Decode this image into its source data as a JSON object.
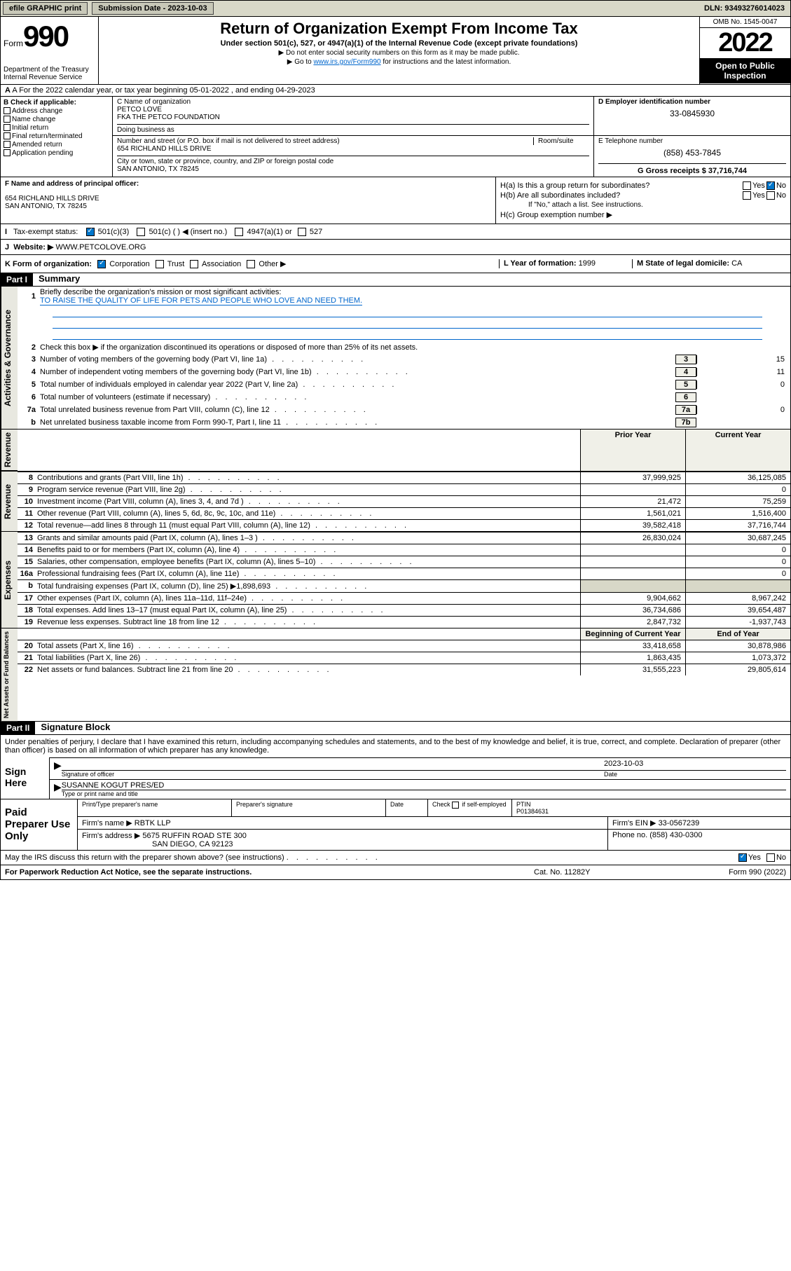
{
  "topbar": {
    "efile": "efile GRAPHIC print",
    "submission_label": "Submission Date - 2023-10-03",
    "dln": "DLN: 93493276014023"
  },
  "header": {
    "form_word": "Form",
    "form_number": "990",
    "dept": "Department of the Treasury",
    "irs": "Internal Revenue Service",
    "title": "Return of Organization Exempt From Income Tax",
    "subtitle": "Under section 501(c), 527, or 4947(a)(1) of the Internal Revenue Code (except private foundations)",
    "note1": "▶ Do not enter social security numbers on this form as it may be made public.",
    "note2_pre": "▶ Go to ",
    "note2_link": "www.irs.gov/Form990",
    "note2_post": " for instructions and the latest information.",
    "omb": "OMB No. 1545-0047",
    "year": "2022",
    "inspection": "Open to Public Inspection"
  },
  "row_a": "A For the 2022 calendar year, or tax year beginning 05-01-2022   , and ending 04-29-2023",
  "section_b": {
    "label": "B Check if applicable:",
    "items": [
      "Address change",
      "Name change",
      "Initial return",
      "Final return/terminated",
      "Amended return",
      "Application pending"
    ]
  },
  "section_c": {
    "name_label": "C Name of organization",
    "name1": "PETCO LOVE",
    "name2": "FKA THE PETCO FOUNDATION",
    "dba_label": "Doing business as",
    "addr_label": "Number and street (or P.O. box if mail is not delivered to street address)",
    "room_label": "Room/suite",
    "addr": "654 RICHLAND HILLS DRIVE",
    "city_label": "City or town, state or province, country, and ZIP or foreign postal code",
    "city": "SAN ANTONIO, TX  78245"
  },
  "section_d": {
    "label": "D Employer identification number",
    "value": "33-0845930"
  },
  "section_e": {
    "label": "E Telephone number",
    "value": "(858) 453-7845"
  },
  "section_g": {
    "label": "G Gross receipts $",
    "value": "37,716,744"
  },
  "section_f": {
    "label": "F Name and address of principal officer:",
    "addr1": "654 RICHLAND HILLS DRIVE",
    "addr2": "SAN ANTONIO, TX  78245"
  },
  "section_h": {
    "ha": "H(a)  Is this a group return for subordinates?",
    "hb": "H(b)  Are all subordinates included?",
    "hb_note": "If \"No,\" attach a list. See instructions.",
    "hc": "H(c)  Group exemption number ▶"
  },
  "row_i": {
    "label": "I",
    "text": "Tax-exempt status:",
    "opt1": "501(c)(3)",
    "opt2": "501(c) (  ) ◀ (insert no.)",
    "opt3": "4947(a)(1) or",
    "opt4": "527"
  },
  "row_j": {
    "label": "J",
    "text": "Website: ▶",
    "value": "WWW.PETCOLOVE.ORG"
  },
  "row_k": {
    "label": "K Form of organization:",
    "opts": [
      "Corporation",
      "Trust",
      "Association",
      "Other ▶"
    ],
    "l_label": "L Year of formation:",
    "l_value": "1999",
    "m_label": "M State of legal domicile:",
    "m_value": "CA"
  },
  "part1": {
    "header": "Part I",
    "title": "Summary"
  },
  "governance": {
    "side": "Activities & Governance",
    "l1_label": "Briefly describe the organization's mission or most significant activities:",
    "l1_text": "TO RAISE THE QUALITY OF LIFE FOR PETS AND PEOPLE WHO LOVE AND NEED THEM.",
    "l2": "Check this box ▶      if the organization discontinued its operations or disposed of more than 25% of its net assets.",
    "lines": [
      {
        "n": "3",
        "t": "Number of voting members of the governing body (Part VI, line 1a)",
        "box": "3",
        "v": "15"
      },
      {
        "n": "4",
        "t": "Number of independent voting members of the governing body (Part VI, line 1b)",
        "box": "4",
        "v": "11"
      },
      {
        "n": "5",
        "t": "Total number of individuals employed in calendar year 2022 (Part V, line 2a)",
        "box": "5",
        "v": "0"
      },
      {
        "n": "6",
        "t": "Total number of volunteers (estimate if necessary)",
        "box": "6",
        "v": ""
      },
      {
        "n": "7a",
        "t": "Total unrelated business revenue from Part VIII, column (C), line 12",
        "box": "7a",
        "v": "0"
      },
      {
        "n": "b",
        "t": "Net unrelated business taxable income from Form 990-T, Part I, line 11",
        "box": "7b",
        "v": ""
      }
    ]
  },
  "col_headers": {
    "prior": "Prior Year",
    "current": "Current Year"
  },
  "revenue": {
    "side": "Revenue",
    "lines": [
      {
        "n": "8",
        "t": "Contributions and grants (Part VIII, line 1h)",
        "p": "37,999,925",
        "c": "36,125,085"
      },
      {
        "n": "9",
        "t": "Program service revenue (Part VIII, line 2g)",
        "p": "",
        "c": "0"
      },
      {
        "n": "10",
        "t": "Investment income (Part VIII, column (A), lines 3, 4, and 7d )",
        "p": "21,472",
        "c": "75,259"
      },
      {
        "n": "11",
        "t": "Other revenue (Part VIII, column (A), lines 5, 6d, 8c, 9c, 10c, and 11e)",
        "p": "1,561,021",
        "c": "1,516,400"
      },
      {
        "n": "12",
        "t": "Total revenue—add lines 8 through 11 (must equal Part VIII, column (A), line 12)",
        "p": "39,582,418",
        "c": "37,716,744"
      }
    ]
  },
  "expenses": {
    "side": "Expenses",
    "lines": [
      {
        "n": "13",
        "t": "Grants and similar amounts paid (Part IX, column (A), lines 1–3 )",
        "p": "26,830,024",
        "c": "30,687,245"
      },
      {
        "n": "14",
        "t": "Benefits paid to or for members (Part IX, column (A), line 4)",
        "p": "",
        "c": "0"
      },
      {
        "n": "15",
        "t": "Salaries, other compensation, employee benefits (Part IX, column (A), lines 5–10)",
        "p": "",
        "c": "0"
      },
      {
        "n": "16a",
        "t": "Professional fundraising fees (Part IX, column (A), line 11e)",
        "p": "",
        "c": "0"
      },
      {
        "n": "b",
        "t": "Total fundraising expenses (Part IX, column (D), line 25) ▶1,898,693",
        "p": "shade",
        "c": "shade"
      },
      {
        "n": "17",
        "t": "Other expenses (Part IX, column (A), lines 11a–11d, 11f–24e)",
        "p": "9,904,662",
        "c": "8,967,242"
      },
      {
        "n": "18",
        "t": "Total expenses. Add lines 13–17 (must equal Part IX, column (A), line 25)",
        "p": "36,734,686",
        "c": "39,654,487"
      },
      {
        "n": "19",
        "t": "Revenue less expenses. Subtract line 18 from line 12",
        "p": "2,847,732",
        "c": "-1,937,743"
      }
    ]
  },
  "netassets_headers": {
    "begin": "Beginning of Current Year",
    "end": "End of Year"
  },
  "netassets": {
    "side": "Net Assets or Fund Balances",
    "lines": [
      {
        "n": "20",
        "t": "Total assets (Part X, line 16)",
        "p": "33,418,658",
        "c": "30,878,986"
      },
      {
        "n": "21",
        "t": "Total liabilities (Part X, line 26)",
        "p": "1,863,435",
        "c": "1,073,372"
      },
      {
        "n": "22",
        "t": "Net assets or fund balances. Subtract line 21 from line 20",
        "p": "31,555,223",
        "c": "29,805,614"
      }
    ]
  },
  "part2": {
    "header": "Part II",
    "title": "Signature Block",
    "intro": "Under penalties of perjury, I declare that I have examined this return, including accompanying schedules and statements, and to the best of my knowledge and belief, it is true, correct, and complete. Declaration of preparer (other than officer) is based on all information of which preparer has any knowledge."
  },
  "sign": {
    "side": "Sign Here",
    "sig_label": "Signature of officer",
    "date_label": "Date",
    "date_value": "2023-10-03",
    "name": "SUSANNE KOGUT PRES/ED",
    "name_label": "Type or print name and title"
  },
  "preparer": {
    "side": "Paid Preparer Use Only",
    "h1": "Print/Type preparer's name",
    "h2": "Preparer's signature",
    "h3": "Date",
    "h4_pre": "Check",
    "h4_post": "if self-employed",
    "h5": "PTIN",
    "ptin": "P01384631",
    "firm_label": "Firm's name     ▶",
    "firm_name": "RBTK LLP",
    "firm_ein_label": "Firm's EIN ▶",
    "firm_ein": "33-0567239",
    "addr_label": "Firm's address ▶",
    "addr1": "5675 RUFFIN ROAD STE 300",
    "addr2": "SAN DIEGO, CA  92123",
    "phone_label": "Phone no.",
    "phone": "(858) 430-0300"
  },
  "discuss": "May the IRS discuss this return with the preparer shown above? (see instructions)",
  "footer": {
    "left": "For Paperwork Reduction Act Notice, see the separate instructions.",
    "mid": "Cat. No. 11282Y",
    "right": "Form 990 (2022)"
  }
}
